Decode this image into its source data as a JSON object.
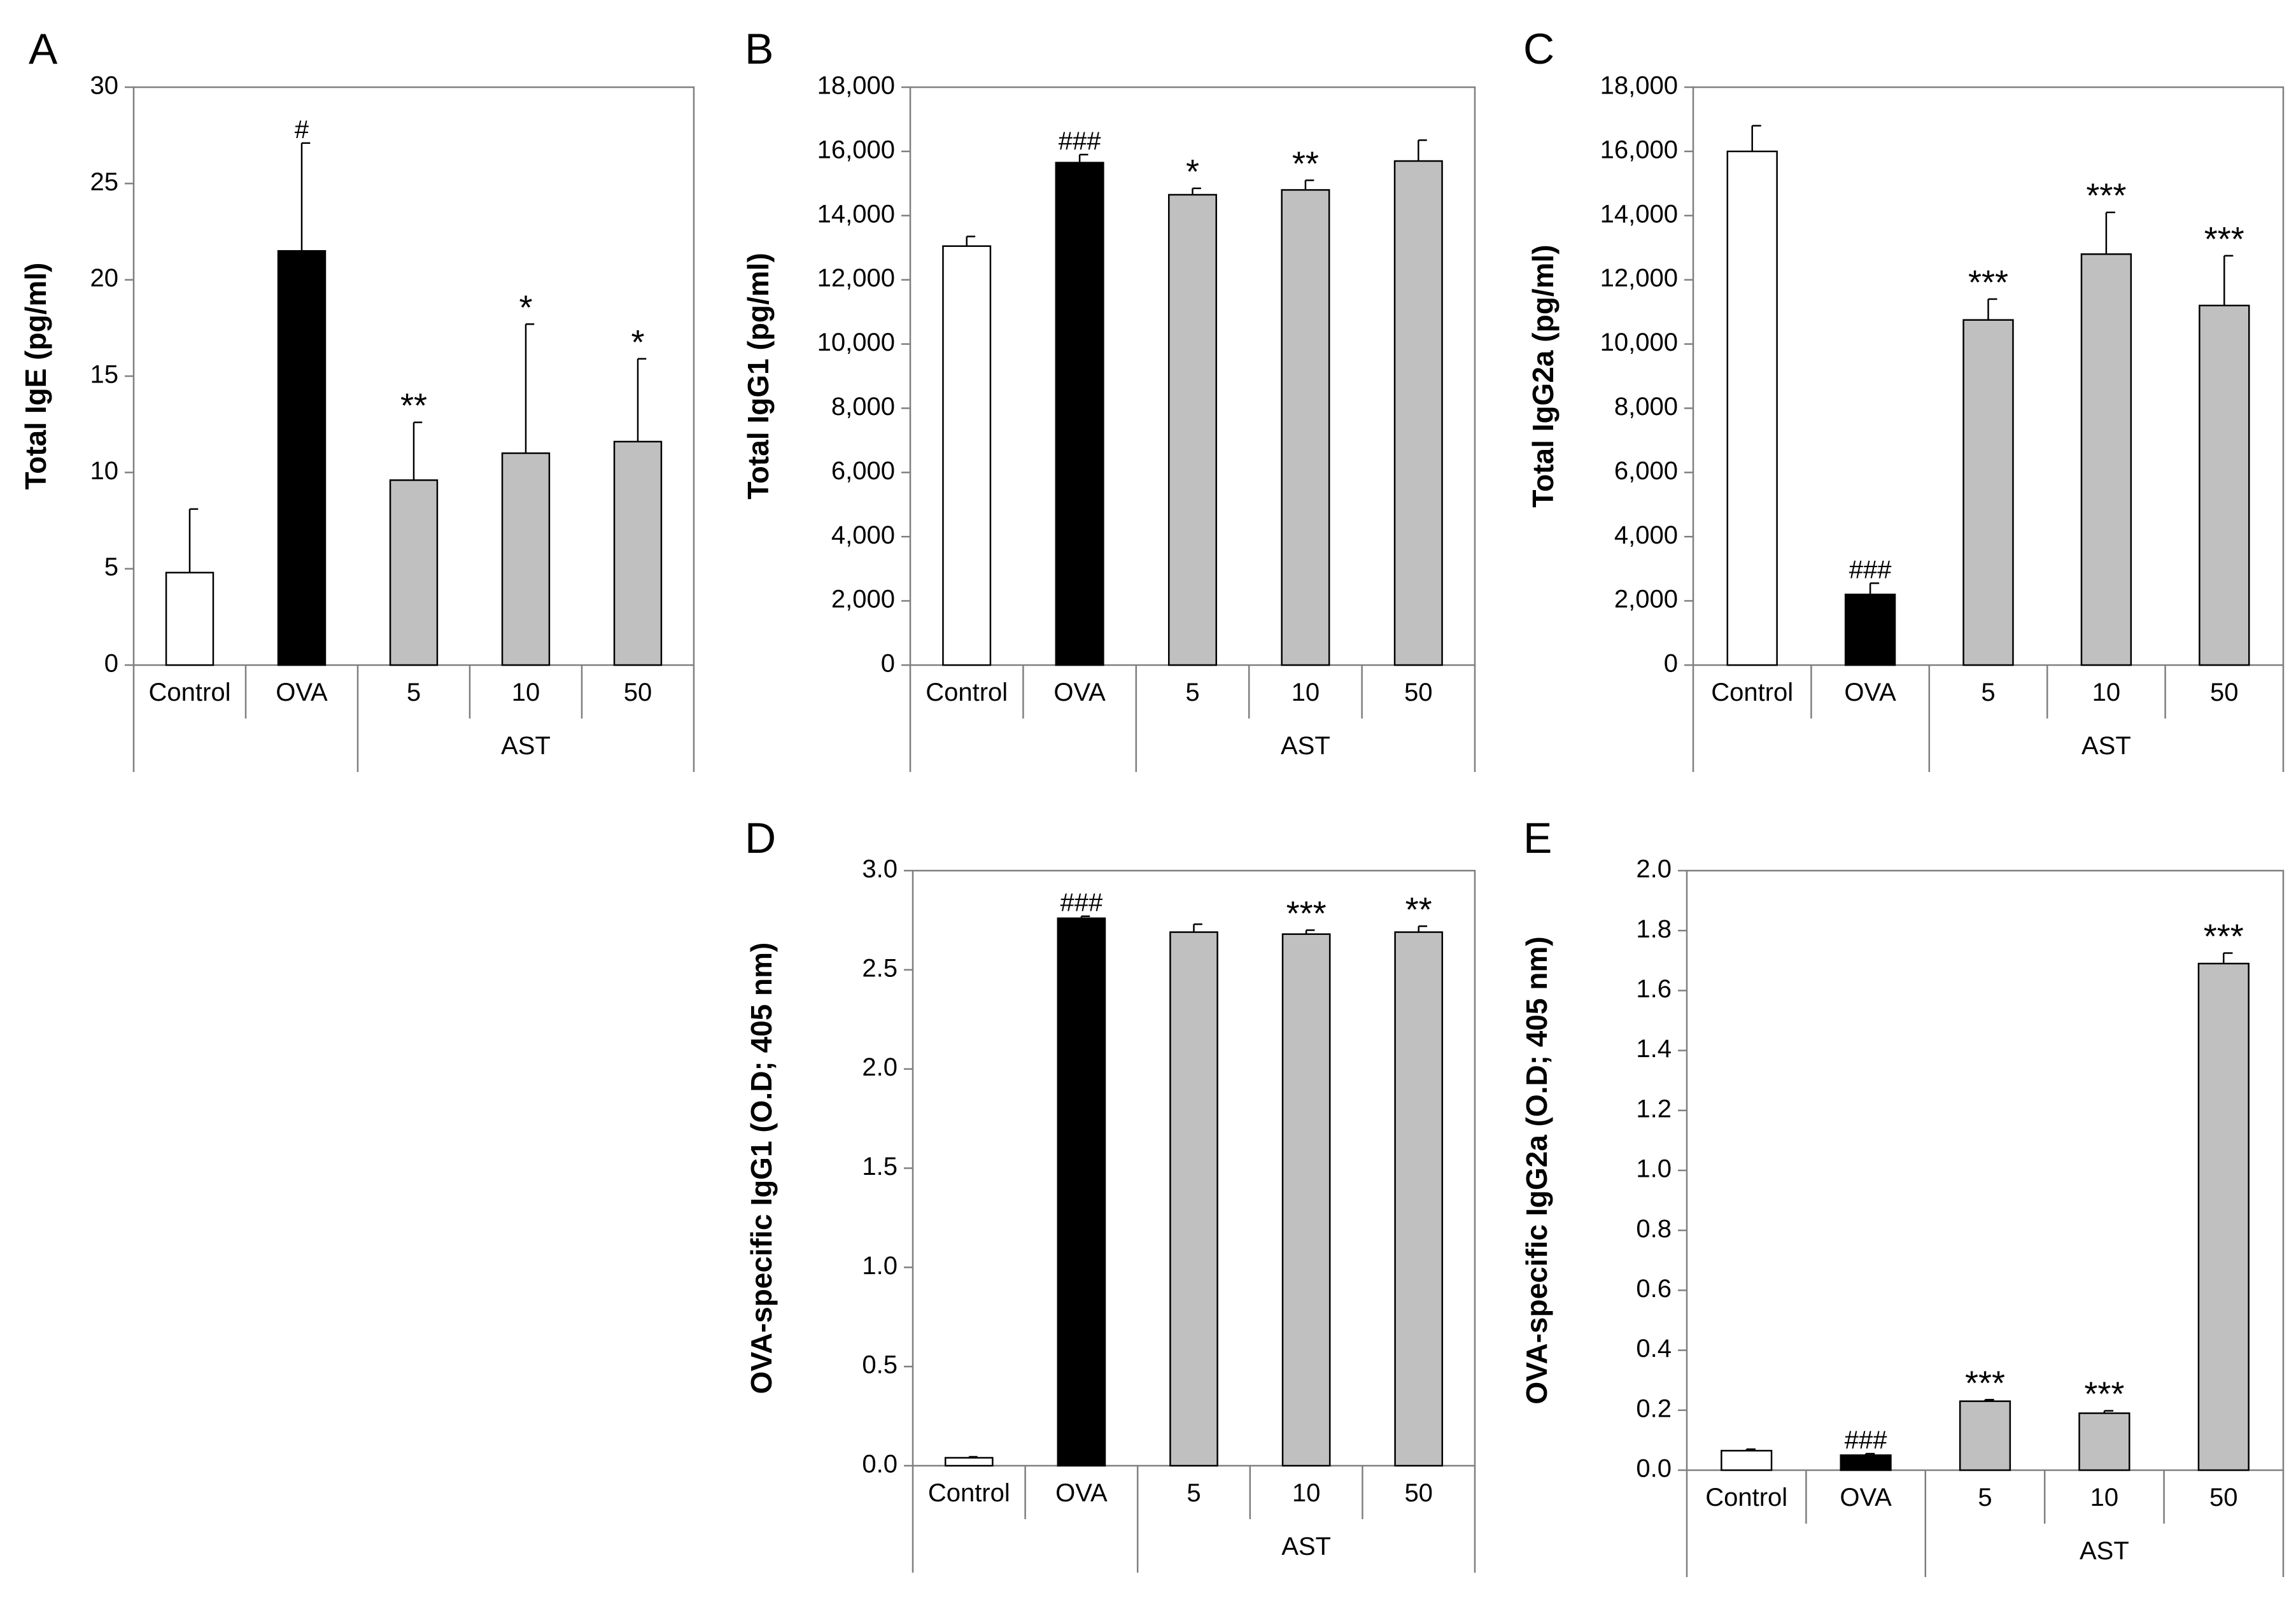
{
  "chart_data": [
    {
      "id": "A",
      "panel_label": "A",
      "type": "bar",
      "ylabel": "Total IgE (pg/ml)",
      "ylim": [
        0,
        30
      ],
      "yticks": [
        0,
        5,
        10,
        15,
        20,
        25,
        30
      ],
      "tick_format": "plain",
      "categories": [
        "Control",
        "OVA",
        "5",
        "10",
        "50"
      ],
      "group_label": "AST",
      "values": [
        4.8,
        21.5,
        9.6,
        11.0,
        11.6
      ],
      "errors": [
        3.3,
        5.6,
        3.0,
        6.7,
        4.3
      ],
      "fills": [
        "white",
        "black",
        "gray",
        "gray",
        "gray"
      ],
      "annotations": [
        "",
        "#",
        "**",
        "*",
        "*"
      ]
    },
    {
      "id": "B",
      "panel_label": "B",
      "type": "bar",
      "ylabel": "Total IgG1 (pg/ml)",
      "ylim": [
        0,
        18000
      ],
      "yticks": [
        0,
        2000,
        4000,
        6000,
        8000,
        10000,
        12000,
        14000,
        16000,
        18000
      ],
      "tick_labels": [
        "0",
        "2,000",
        "4,000",
        "6,000",
        "8,000",
        "10,000",
        "12,000",
        "14,000",
        "16,000",
        "18,000"
      ],
      "categories": [
        "Control",
        "OVA",
        "5",
        "10",
        "50"
      ],
      "group_label": "AST",
      "values": [
        13050,
        15650,
        14650,
        14800,
        15700
      ],
      "errors": [
        300,
        250,
        200,
        300,
        650
      ],
      "fills": [
        "white",
        "black",
        "gray",
        "gray",
        "gray"
      ],
      "annotations": [
        "",
        "###",
        "*",
        "**",
        ""
      ]
    },
    {
      "id": "C",
      "panel_label": "C",
      "type": "bar",
      "ylabel": "Total IgG2a (pg/ml)",
      "ylim": [
        0,
        18000
      ],
      "yticks": [
        0,
        2000,
        4000,
        6000,
        8000,
        10000,
        12000,
        14000,
        16000,
        18000
      ],
      "tick_labels": [
        "0",
        "2,000",
        "4,000",
        "6,000",
        "8,000",
        "10,000",
        "12,000",
        "14,000",
        "16,000",
        "18,000"
      ],
      "categories": [
        "Control",
        "OVA",
        "5",
        "10",
        "50"
      ],
      "group_label": "AST",
      "values": [
        16000,
        2200,
        10750,
        12800,
        11200
      ],
      "errors": [
        800,
        350,
        650,
        1300,
        1550
      ],
      "fills": [
        "white",
        "black",
        "gray",
        "gray",
        "gray"
      ],
      "annotations": [
        "",
        "###",
        "***",
        "***",
        "***"
      ]
    },
    {
      "id": "D",
      "panel_label": "D",
      "type": "bar",
      "ylabel": "OVA-specific IgG1 (O.D; 405 nm)",
      "ylim": [
        0,
        3.0
      ],
      "yticks": [
        0,
        0.5,
        1.0,
        1.5,
        2.0,
        2.5,
        3.0
      ],
      "tick_labels": [
        "0.0",
        "0.5",
        "1.0",
        "1.5",
        "2.0",
        "2.5",
        "3.0"
      ],
      "categories": [
        "Control",
        "OVA",
        "5",
        "10",
        "50"
      ],
      "group_label": "AST",
      "values": [
        0.04,
        2.76,
        2.69,
        2.68,
        2.69
      ],
      "errors": [
        0.005,
        0.01,
        0.04,
        0.02,
        0.03
      ],
      "fills": [
        "white",
        "black",
        "gray",
        "gray",
        "gray"
      ],
      "annotations": [
        "",
        "###",
        "",
        "***",
        "**"
      ]
    },
    {
      "id": "E",
      "panel_label": "E",
      "type": "bar",
      "ylabel": "OVA-specific IgG2a (O.D; 405 nm)",
      "ylim": [
        0,
        2.0
      ],
      "yticks": [
        0,
        0.2,
        0.4,
        0.6,
        0.8,
        1.0,
        1.2,
        1.4,
        1.6,
        1.8,
        2.0
      ],
      "tick_labels": [
        "0.0",
        "0.2",
        "0.4",
        "0.6",
        "0.8",
        "1.0",
        "1.2",
        "1.4",
        "1.6",
        "1.8",
        "2.0"
      ],
      "categories": [
        "Control",
        "OVA",
        "5",
        "10",
        "50"
      ],
      "group_label": "AST",
      "values": [
        0.065,
        0.05,
        0.23,
        0.19,
        1.69
      ],
      "errors": [
        0.005,
        0.005,
        0.005,
        0.008,
        0.035
      ],
      "fills": [
        "white",
        "black",
        "gray",
        "gray",
        "gray"
      ],
      "annotations": [
        "",
        "###",
        "***",
        "***",
        "***"
      ]
    }
  ]
}
